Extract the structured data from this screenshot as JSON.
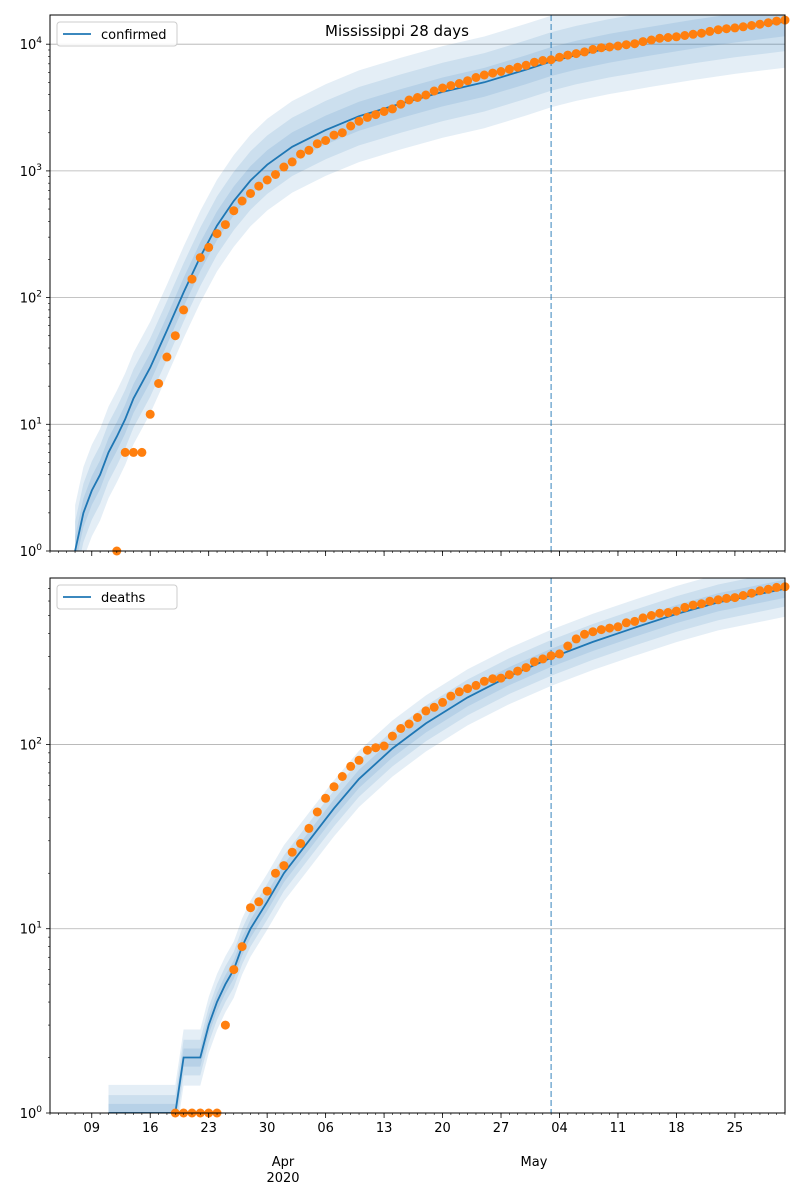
{
  "figure": {
    "title": "Mississippi 28 days",
    "month_labels": [
      "Apr",
      "May"
    ],
    "year_label": "2020"
  },
  "colors": {
    "model": "#1f77b4",
    "observed": "#ff7f0e",
    "band": "#1f77b4",
    "vline": "#1f77b4",
    "grid": "#b0b0b0"
  },
  "chart_data": [
    {
      "type": "line",
      "legend": "confirmed",
      "legend_position": "top-left",
      "y_scale": "log",
      "ylim": [
        1,
        17000
      ],
      "y_ticks": [
        1,
        10,
        100,
        1000,
        10000
      ],
      "y_tick_labels": [
        [
          "10",
          "0"
        ],
        [
          "10",
          "1"
        ],
        [
          "10",
          "2"
        ],
        [
          "10",
          "3"
        ],
        [
          "10",
          "4"
        ]
      ],
      "x_range": [
        "2020-03-04",
        "2020-05-31"
      ],
      "x_ticks": [
        "2020-03-09",
        "2020-03-16",
        "2020-03-23",
        "2020-03-30",
        "2020-04-06",
        "2020-04-13",
        "2020-04-20",
        "2020-04-27",
        "2020-05-04",
        "2020-05-11",
        "2020-05-18",
        "2020-05-25"
      ],
      "x_tick_labels": [
        "09",
        "16",
        "23",
        "30",
        "06",
        "13",
        "20",
        "27",
        "04",
        "11",
        "18",
        "25"
      ],
      "grid": "y-major",
      "forecast_start": "2020-05-03",
      "observed": [
        [
          "2020-03-12",
          1
        ],
        [
          "2020-03-13",
          6
        ],
        [
          "2020-03-14",
          6
        ],
        [
          "2020-03-15",
          6
        ],
        [
          "2020-03-16",
          12
        ],
        [
          "2020-03-17",
          21
        ],
        [
          "2020-03-18",
          34
        ],
        [
          "2020-03-19",
          50
        ],
        [
          "2020-03-20",
          80
        ],
        [
          "2020-03-21",
          140
        ],
        [
          "2020-03-22",
          207
        ],
        [
          "2020-03-23",
          249
        ],
        [
          "2020-03-24",
          320
        ],
        [
          "2020-03-25",
          377
        ],
        [
          "2020-03-26",
          485
        ],
        [
          "2020-03-27",
          579
        ],
        [
          "2020-03-28",
          663
        ],
        [
          "2020-03-29",
          758
        ],
        [
          "2020-03-30",
          847
        ],
        [
          "2020-03-31",
          937
        ],
        [
          "2020-04-01",
          1073
        ],
        [
          "2020-04-02",
          1177
        ],
        [
          "2020-04-03",
          1358
        ],
        [
          "2020-04-04",
          1455
        ],
        [
          "2020-04-05",
          1638
        ],
        [
          "2020-04-06",
          1738
        ],
        [
          "2020-04-07",
          1915
        ],
        [
          "2020-04-08",
          2003
        ],
        [
          "2020-04-09",
          2260
        ],
        [
          "2020-04-10",
          2469
        ],
        [
          "2020-04-11",
          2642
        ],
        [
          "2020-04-12",
          2781
        ],
        [
          "2020-04-13",
          2942
        ],
        [
          "2020-04-14",
          3087
        ],
        [
          "2020-04-15",
          3360
        ],
        [
          "2020-04-16",
          3624
        ],
        [
          "2020-04-17",
          3793
        ],
        [
          "2020-04-18",
          3974
        ],
        [
          "2020-04-19",
          4274
        ],
        [
          "2020-04-20",
          4512
        ],
        [
          "2020-04-21",
          4716
        ],
        [
          "2020-04-22",
          4894
        ],
        [
          "2020-04-23",
          5153
        ],
        [
          "2020-04-24",
          5458
        ],
        [
          "2020-04-25",
          5718
        ],
        [
          "2020-04-26",
          5911
        ],
        [
          "2020-04-27",
          6094
        ],
        [
          "2020-04-28",
          6342
        ],
        [
          "2020-04-29",
          6569
        ],
        [
          "2020-04-30",
          6815
        ],
        [
          "2020-05-01",
          7212
        ],
        [
          "2020-05-02",
          7441
        ],
        [
          "2020-05-03",
          7550
        ],
        [
          "2020-05-04",
          7877
        ],
        [
          "2020-05-05",
          8207
        ],
        [
          "2020-05-06",
          8424
        ],
        [
          "2020-05-07",
          8686
        ],
        [
          "2020-05-08",
          9090
        ],
        [
          "2020-05-09",
          9378
        ],
        [
          "2020-05-10",
          9501
        ],
        [
          "2020-05-11",
          9674
        ],
        [
          "2020-05-12",
          9908
        ],
        [
          "2020-05-13",
          10090
        ],
        [
          "2020-05-14",
          10483
        ],
        [
          "2020-05-15",
          10801
        ],
        [
          "2020-05-16",
          11123
        ],
        [
          "2020-05-17",
          11296
        ],
        [
          "2020-05-18",
          11432
        ],
        [
          "2020-05-19",
          11704
        ],
        [
          "2020-05-20",
          11967
        ],
        [
          "2020-05-21",
          12222
        ],
        [
          "2020-05-22",
          12624
        ],
        [
          "2020-05-23",
          13005
        ],
        [
          "2020-05-24",
          13252
        ],
        [
          "2020-05-25",
          13458
        ],
        [
          "2020-05-26",
          13731
        ],
        [
          "2020-05-27",
          14044
        ],
        [
          "2020-05-28",
          14372
        ],
        [
          "2020-05-29",
          14790
        ],
        [
          "2020-05-30",
          15229
        ],
        [
          "2020-05-31",
          15501
        ]
      ],
      "model": [
        [
          "2020-03-07",
          1
        ],
        [
          "2020-03-08",
          2
        ],
        [
          "2020-03-09",
          3
        ],
        [
          "2020-03-10",
          4
        ],
        [
          "2020-03-11",
          6
        ],
        [
          "2020-03-12",
          8
        ],
        [
          "2020-03-13",
          11
        ],
        [
          "2020-03-14",
          16
        ],
        [
          "2020-03-16",
          28
        ],
        [
          "2020-03-18",
          55
        ],
        [
          "2020-03-20",
          110
        ],
        [
          "2020-03-22",
          210
        ],
        [
          "2020-03-24",
          370
        ],
        [
          "2020-03-26",
          580
        ],
        [
          "2020-03-28",
          840
        ],
        [
          "2020-03-30",
          1120
        ],
        [
          "2020-04-02",
          1550
        ],
        [
          "2020-04-06",
          2100
        ],
        [
          "2020-04-10",
          2700
        ],
        [
          "2020-04-15",
          3400
        ],
        [
          "2020-04-20",
          4200
        ],
        [
          "2020-04-25",
          5000
        ],
        [
          "2020-04-30",
          6300
        ],
        [
          "2020-05-03",
          7300
        ],
        [
          "2020-05-06",
          8200
        ],
        [
          "2020-05-10",
          9300
        ],
        [
          "2020-05-15",
          10600
        ],
        [
          "2020-05-20",
          12000
        ],
        [
          "2020-05-25",
          13400
        ],
        [
          "2020-05-31",
          15000
        ]
      ],
      "band_widths": [
        1.3,
        1.7,
        2.3
      ]
    },
    {
      "type": "line",
      "legend": "deaths",
      "legend_position": "top-left",
      "y_scale": "log",
      "ylim": [
        1,
        800
      ],
      "y_ticks": [
        1,
        10,
        100
      ],
      "y_tick_labels": [
        [
          "10",
          "0"
        ],
        [
          "10",
          "1"
        ],
        [
          "10",
          "2"
        ]
      ],
      "x_range": [
        "2020-03-04",
        "2020-05-31"
      ],
      "x_ticks": [
        "2020-03-09",
        "2020-03-16",
        "2020-03-23",
        "2020-03-30",
        "2020-04-06",
        "2020-04-13",
        "2020-04-20",
        "2020-04-27",
        "2020-05-04",
        "2020-05-11",
        "2020-05-18",
        "2020-05-25"
      ],
      "x_tick_labels": [
        "09",
        "16",
        "23",
        "30",
        "06",
        "13",
        "20",
        "27",
        "04",
        "11",
        "18",
        "25"
      ],
      "grid": "y-major",
      "forecast_start": "2020-05-03",
      "observed": [
        [
          "2020-03-19",
          1
        ],
        [
          "2020-03-20",
          1
        ],
        [
          "2020-03-21",
          1
        ],
        [
          "2020-03-22",
          1
        ],
        [
          "2020-03-23",
          1
        ],
        [
          "2020-03-24",
          1
        ],
        [
          "2020-03-25",
          3
        ],
        [
          "2020-03-26",
          6
        ],
        [
          "2020-03-27",
          8
        ],
        [
          "2020-03-28",
          13
        ],
        [
          "2020-03-29",
          14
        ],
        [
          "2020-03-30",
          16
        ],
        [
          "2020-03-31",
          20
        ],
        [
          "2020-04-01",
          22
        ],
        [
          "2020-04-02",
          26
        ],
        [
          "2020-04-03",
          29
        ],
        [
          "2020-04-04",
          35
        ],
        [
          "2020-04-05",
          43
        ],
        [
          "2020-04-06",
          51
        ],
        [
          "2020-04-07",
          59
        ],
        [
          "2020-04-08",
          67
        ],
        [
          "2020-04-09",
          76
        ],
        [
          "2020-04-10",
          82
        ],
        [
          "2020-04-11",
          93
        ],
        [
          "2020-04-12",
          96
        ],
        [
          "2020-04-13",
          98
        ],
        [
          "2020-04-14",
          111
        ],
        [
          "2020-04-15",
          122
        ],
        [
          "2020-04-16",
          129
        ],
        [
          "2020-04-17",
          140
        ],
        [
          "2020-04-18",
          152
        ],
        [
          "2020-04-19",
          159
        ],
        [
          "2020-04-20",
          169
        ],
        [
          "2020-04-21",
          183
        ],
        [
          "2020-04-22",
          193
        ],
        [
          "2020-04-23",
          201
        ],
        [
          "2020-04-24",
          209
        ],
        [
          "2020-04-25",
          220
        ],
        [
          "2020-04-26",
          227
        ],
        [
          "2020-04-27",
          229
        ],
        [
          "2020-04-28",
          239
        ],
        [
          "2020-04-29",
          250
        ],
        [
          "2020-04-30",
          261
        ],
        [
          "2020-05-01",
          281
        ],
        [
          "2020-05-02",
          291
        ],
        [
          "2020-05-03",
          303
        ],
        [
          "2020-05-04",
          310
        ],
        [
          "2020-05-05",
          342
        ],
        [
          "2020-05-06",
          374
        ],
        [
          "2020-05-07",
          396
        ],
        [
          "2020-05-08",
          409
        ],
        [
          "2020-05-09",
          420
        ],
        [
          "2020-05-10",
          428
        ],
        [
          "2020-05-11",
          435
        ],
        [
          "2020-05-12",
          457
        ],
        [
          "2020-05-13",
          465
        ],
        [
          "2020-05-14",
          486
        ],
        [
          "2020-05-15",
          501
        ],
        [
          "2020-05-16",
          515
        ],
        [
          "2020-05-17",
          520
        ],
        [
          "2020-05-18",
          529
        ],
        [
          "2020-05-19",
          554
        ],
        [
          "2020-05-20",
          570
        ],
        [
          "2020-05-21",
          580
        ],
        [
          "2020-05-22",
          599
        ],
        [
          "2020-05-23",
          609
        ],
        [
          "2020-05-24",
          620
        ],
        [
          "2020-05-25",
          626
        ],
        [
          "2020-05-26",
          643
        ],
        [
          "2020-05-27",
          662
        ],
        [
          "2020-05-28",
          682
        ],
        [
          "2020-05-29",
          695
        ],
        [
          "2020-05-30",
          711
        ],
        [
          "2020-05-31",
          718
        ]
      ],
      "model": [
        [
          "2020-03-11",
          1
        ],
        [
          "2020-03-19",
          1
        ],
        [
          "2020-03-20",
          2
        ],
        [
          "2020-03-22",
          2
        ],
        [
          "2020-03-23",
          3
        ],
        [
          "2020-03-24",
          4
        ],
        [
          "2020-03-25",
          5
        ],
        [
          "2020-03-26",
          6
        ],
        [
          "2020-03-27",
          8
        ],
        [
          "2020-03-28",
          10
        ],
        [
          "2020-03-30",
          14
        ],
        [
          "2020-04-01",
          20
        ],
        [
          "2020-04-04",
          30
        ],
        [
          "2020-04-07",
          45
        ],
        [
          "2020-04-10",
          65
        ],
        [
          "2020-04-14",
          95
        ],
        [
          "2020-04-18",
          130
        ],
        [
          "2020-04-23",
          180
        ],
        [
          "2020-04-28",
          235
        ],
        [
          "2020-05-03",
          295
        ],
        [
          "2020-05-08",
          360
        ],
        [
          "2020-05-13",
          430
        ],
        [
          "2020-05-18",
          510
        ],
        [
          "2020-05-23",
          590
        ],
        [
          "2020-05-31",
          700
        ]
      ],
      "band_widths": [
        1.12,
        1.25,
        1.42
      ]
    }
  ]
}
